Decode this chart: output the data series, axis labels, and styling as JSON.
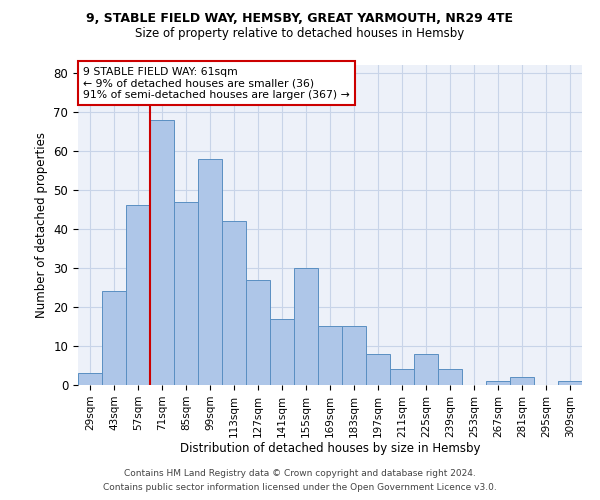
{
  "title1": "9, STABLE FIELD WAY, HEMSBY, GREAT YARMOUTH, NR29 4TE",
  "title2": "Size of property relative to detached houses in Hemsby",
  "xlabel": "Distribution of detached houses by size in Hemsby",
  "ylabel": "Number of detached properties",
  "footnote1": "Contains HM Land Registry data © Crown copyright and database right 2024.",
  "footnote2": "Contains public sector information licensed under the Open Government Licence v3.0.",
  "bin_labels": [
    "29sqm",
    "43sqm",
    "57sqm",
    "71sqm",
    "85sqm",
    "99sqm",
    "113sqm",
    "127sqm",
    "141sqm",
    "155sqm",
    "169sqm",
    "183sqm",
    "197sqm",
    "211sqm",
    "225sqm",
    "239sqm",
    "253sqm",
    "267sqm",
    "281sqm",
    "295sqm",
    "309sqm"
  ],
  "bar_values": [
    3,
    24,
    46,
    68,
    47,
    58,
    42,
    27,
    17,
    30,
    15,
    15,
    8,
    4,
    8,
    4,
    0,
    1,
    2,
    0,
    1
  ],
  "bar_color": "#aec6e8",
  "bar_edge_color": "#5a8fc2",
  "vline_color": "#cc0000",
  "annotation_text": "9 STABLE FIELD WAY: 61sqm\n← 9% of detached houses are smaller (36)\n91% of semi-detached houses are larger (367) →",
  "annotation_box_color": "#ffffff",
  "annotation_box_edge": "#cc0000",
  "ylim": [
    0,
    82
  ],
  "yticks": [
    0,
    10,
    20,
    30,
    40,
    50,
    60,
    70,
    80
  ],
  "grid_color": "#c8d4e8",
  "bg_color": "#edf1f9"
}
